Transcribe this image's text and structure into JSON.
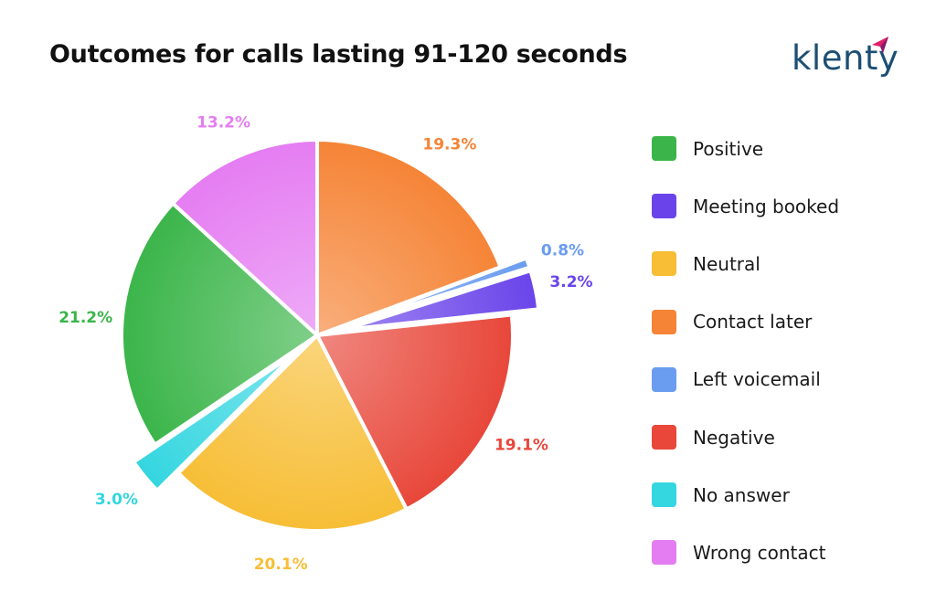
{
  "title": "Outcomes for calls lasting 91-120 seconds",
  "brand": {
    "name": "klenty",
    "color": "#1d4f73",
    "accent": "#e0216a"
  },
  "chart_data": {
    "type": "pie",
    "title": "Outcomes for calls lasting 91-120 seconds",
    "legend_position": "right",
    "slices": [
      {
        "label": "Contact later",
        "value": 19.3,
        "display": "19.3%",
        "color": "#f58436",
        "exploded": false
      },
      {
        "label": "Left voicemail",
        "value": 0.8,
        "display": "0.8%",
        "color": "#6a9cf0",
        "exploded": true
      },
      {
        "label": "Meeting booked",
        "value": 3.2,
        "display": "3.2%",
        "color": "#6a44ea",
        "exploded": true
      },
      {
        "label": "Negative",
        "value": 19.1,
        "display": "19.1%",
        "color": "#e8473a",
        "exploded": false
      },
      {
        "label": "Neutral",
        "value": 20.1,
        "display": "20.1%",
        "color": "#f7be36",
        "exploded": false
      },
      {
        "label": "No answer",
        "value": 3.0,
        "display": "3.0%",
        "color": "#34d6e0",
        "exploded": true
      },
      {
        "label": "Positive",
        "value": 21.2,
        "display": "21.2%",
        "color": "#3bb54a",
        "exploded": false
      },
      {
        "label": "Wrong contact",
        "value": 13.2,
        "display": "13.2%",
        "color": "#e57df2",
        "exploded": false
      }
    ]
  },
  "legend": [
    {
      "label": "Positive",
      "color": "#3bb54a"
    },
    {
      "label": "Meeting booked",
      "color": "#6a44ea"
    },
    {
      "label": "Neutral",
      "color": "#f7be36"
    },
    {
      "label": "Contact later",
      "color": "#f58436"
    },
    {
      "label": "Left voicemail",
      "color": "#6a9cf0"
    },
    {
      "label": "Negative",
      "color": "#e8473a"
    },
    {
      "label": "No answer",
      "color": "#34d6e0"
    },
    {
      "label": "Wrong contact",
      "color": "#e57df2"
    }
  ]
}
